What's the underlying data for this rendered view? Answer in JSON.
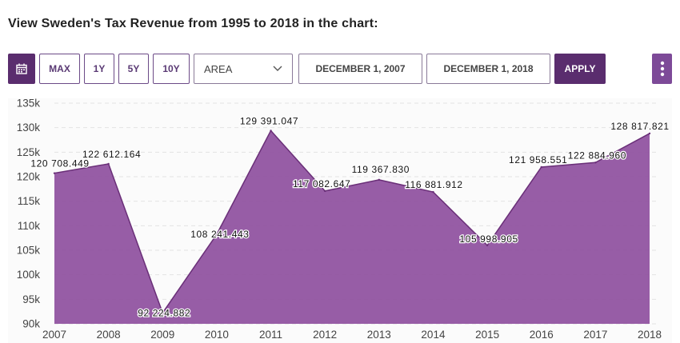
{
  "heading": "View Sweden's Tax Revenue from 1995 to 2018 in the chart:",
  "toolbar": {
    "calendar_icon": "calendar-icon",
    "max_label": "MAX",
    "y1_label": "1Y",
    "y5_label": "5Y",
    "y10_label": "10Y",
    "chart_type_value": "AREA",
    "chevron_icon": "chevron-down-icon",
    "start_date": "DECEMBER 1, 2007",
    "end_date": "DECEMBER 1, 2018",
    "apply_label": "APPLY",
    "menu_icon": "kebab-menu-icon"
  },
  "colors": {
    "accent": "#5a2d6e",
    "area_fill": "#8e4f9e",
    "area_line": "#6a2f78"
  },
  "chart_data": {
    "type": "area",
    "x": [
      "2007",
      "2008",
      "2009",
      "2010",
      "2011",
      "2012",
      "2013",
      "2014",
      "2015",
      "2016",
      "2017",
      "2018"
    ],
    "values": [
      120708.449,
      122612.164,
      92224.882,
      108241.443,
      129391.047,
      117082.647,
      119367.83,
      116881.912,
      105998.905,
      121958.551,
      122884.96,
      128817.821
    ],
    "data_labels": [
      "120 708.449",
      "122 612.164",
      "92 224.882",
      "108 241.443",
      "129 391.047",
      "117 082.647",
      "119 367.830",
      "116 881.912",
      "105 998.905",
      "121 958.551",
      "122 884.960",
      "128 817.821"
    ],
    "y_ticks": [
      90000,
      95000,
      100000,
      105000,
      110000,
      115000,
      120000,
      125000,
      130000,
      135000
    ],
    "y_tick_labels": [
      "90k",
      "95k",
      "100k",
      "105k",
      "110k",
      "115k",
      "120k",
      "125k",
      "130k",
      "135k"
    ],
    "ylim": [
      90000,
      135000
    ],
    "grid": true,
    "legend": false
  }
}
